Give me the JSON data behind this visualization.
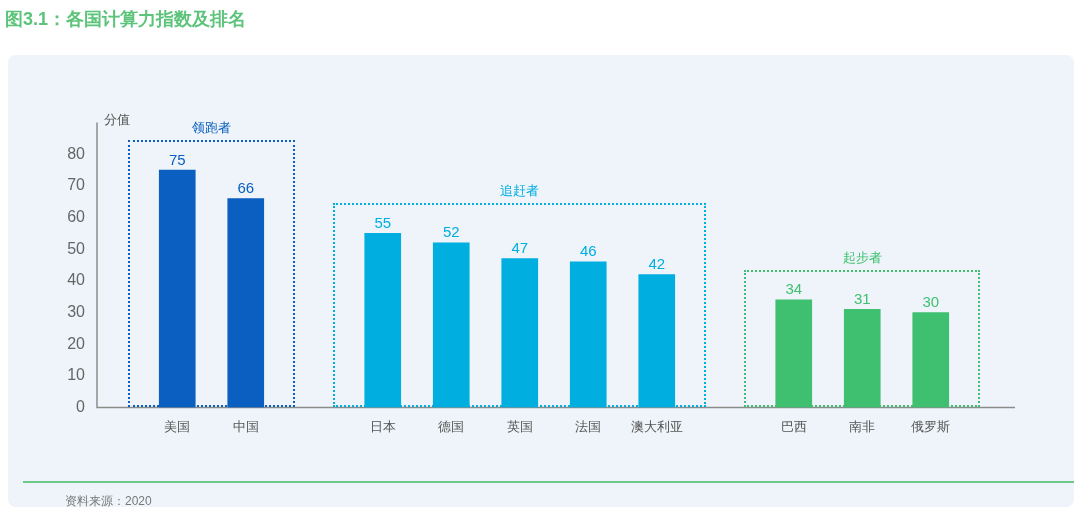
{
  "chart_data": {
    "type": "bar",
    "title": "图3.1：各国计算力指数及排名",
    "ylabel": "分值",
    "categories": [
      "美国",
      "中国",
      null,
      "日本",
      "德国",
      "英国",
      "法国",
      "澳大利亚",
      null,
      "巴西",
      "南非",
      "俄罗斯"
    ],
    "series": [
      {
        "name": "领跑者",
        "color": "#0b5fc0",
        "values": [
          75,
          66,
          null,
          null,
          null,
          null,
          null,
          null,
          null,
          null,
          null,
          null
        ]
      },
      {
        "name": "追赶者",
        "color": "#00aee0",
        "values": [
          null,
          null,
          null,
          55,
          52,
          47,
          46,
          42,
          null,
          null,
          null,
          null
        ]
      },
      {
        "name": "起步者",
        "color": "#3fc070",
        "values": [
          null,
          null,
          null,
          null,
          null,
          null,
          null,
          null,
          null,
          34,
          31,
          30
        ]
      }
    ],
    "ylim": [
      0,
      90
    ],
    "yticks": [
      0,
      10,
      20,
      30,
      40,
      50,
      60,
      70,
      80
    ],
    "grid": false,
    "legend": false,
    "data_labels": true,
    "annotations": [
      "资料来源：2020"
    ]
  }
}
